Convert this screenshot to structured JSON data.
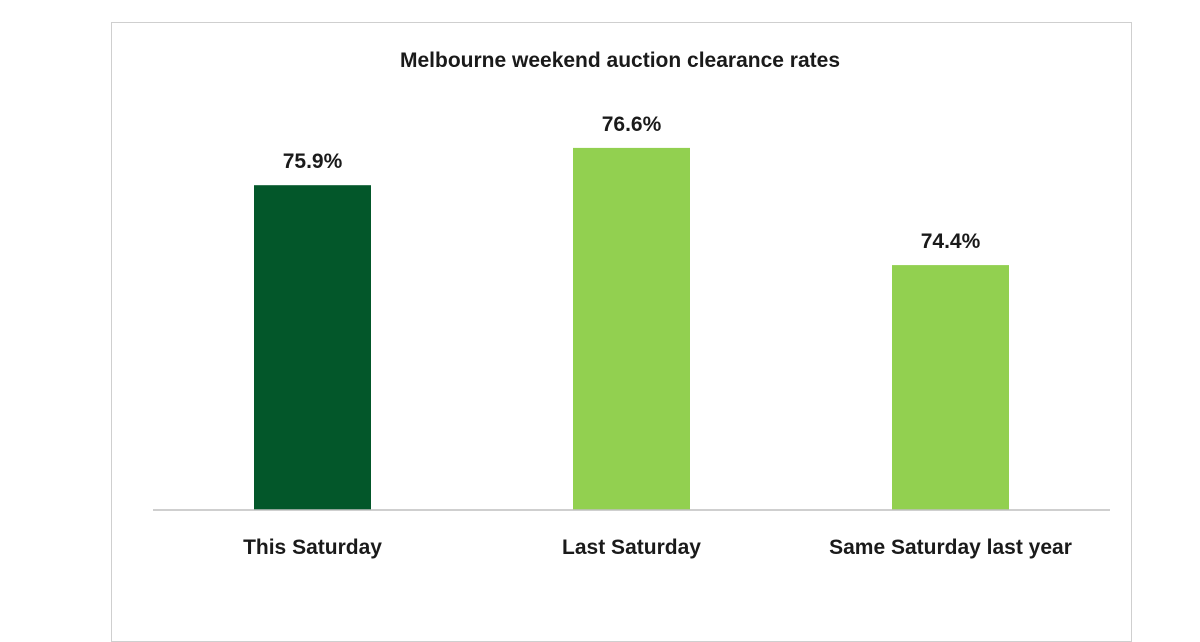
{
  "chart_data": {
    "type": "bar",
    "title": "Melbourne weekend auction clearance rates",
    "xlabel": "",
    "ylabel": "",
    "categories": [
      "This Saturday",
      "Last Saturday",
      "Same Saturday last year"
    ],
    "values": [
      75.9,
      76.6,
      74.4
    ],
    "value_labels": [
      "75.9%",
      "76.6%",
      "74.4%"
    ],
    "ylim": [
      69.8,
      77.5
    ],
    "grid": false,
    "legend": "none",
    "bar_colors": [
      "#03572a",
      "#92d050",
      "#92d050"
    ]
  }
}
